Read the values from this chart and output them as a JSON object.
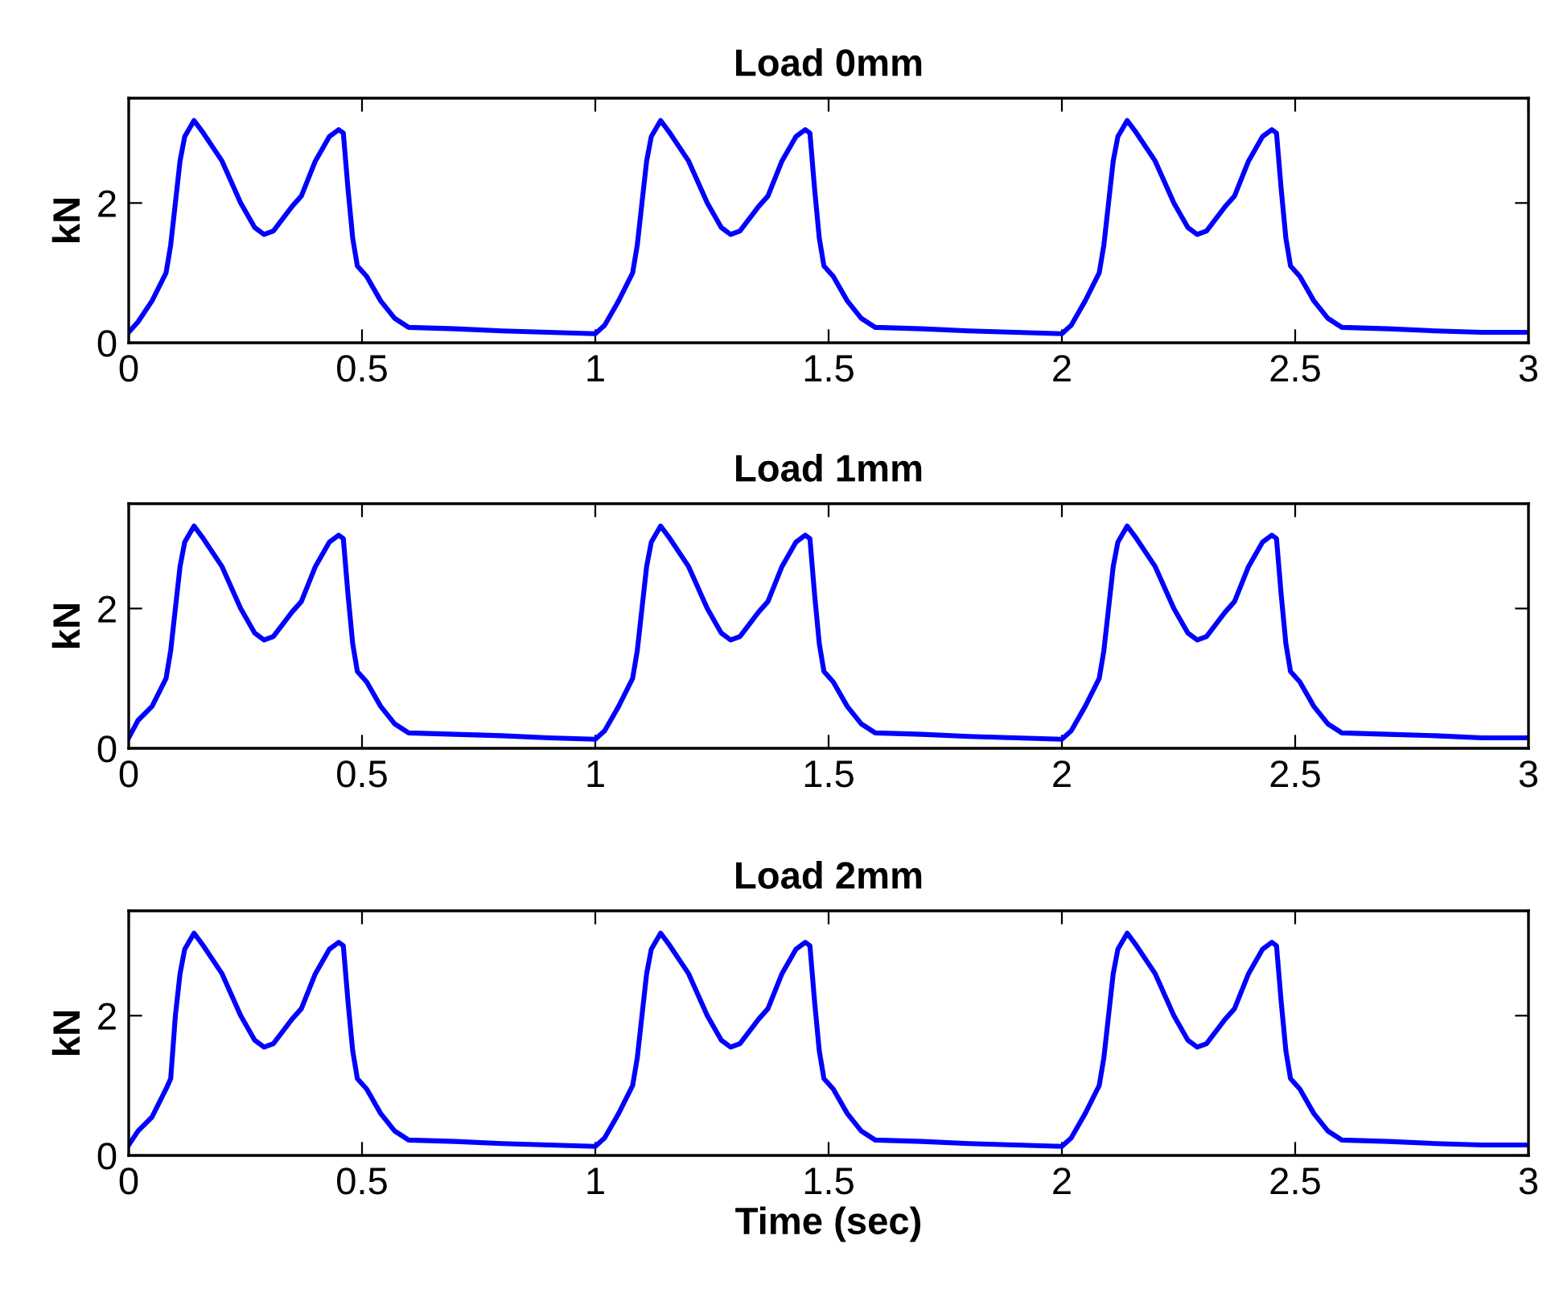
{
  "chart_data": [
    {
      "type": "line",
      "title": "Load 0mm",
      "ylabel": "kN",
      "xlim": [
        0,
        3
      ],
      "xticks": [
        0,
        0.5,
        1,
        1.5,
        2,
        2.5,
        3
      ],
      "ylim": [
        0,
        3.5
      ],
      "yticks": [
        0,
        2
      ],
      "grid": false,
      "marker": "none",
      "line_style": "solid",
      "series": [
        {
          "color": "#0000ff",
          "x": [
            0,
            0.02,
            0.05,
            0.08,
            0.09,
            0.1,
            0.11,
            0.12,
            0.14,
            0.16,
            0.2,
            0.24,
            0.27,
            0.29,
            0.31,
            0.35,
            0.37,
            0.4,
            0.43,
            0.45,
            0.46,
            0.47,
            0.48,
            0.49,
            0.51,
            0.54,
            0.57,
            0.6,
            0.7,
            0.8,
            0.9,
            1.0,
            1.02,
            1.05,
            1.08,
            1.09,
            1.1,
            1.11,
            1.12,
            1.14,
            1.16,
            1.2,
            1.24,
            1.27,
            1.29,
            1.31,
            1.35,
            1.37,
            1.4,
            1.43,
            1.45,
            1.46,
            1.47,
            1.48,
            1.49,
            1.51,
            1.54,
            1.57,
            1.6,
            1.7,
            1.8,
            1.9,
            2.0,
            2.02,
            2.05,
            2.08,
            2.09,
            2.1,
            2.11,
            2.12,
            2.14,
            2.16,
            2.2,
            2.24,
            2.27,
            2.29,
            2.31,
            2.35,
            2.37,
            2.4,
            2.43,
            2.45,
            2.46,
            2.47,
            2.48,
            2.49,
            2.51,
            2.54,
            2.57,
            2.6,
            2.7,
            2.8,
            2.9,
            3.0
          ],
          "values": [
            0.15,
            0.3,
            0.6,
            1.0,
            1.4,
            2.0,
            2.6,
            2.95,
            3.18,
            3.0,
            2.6,
            2.0,
            1.65,
            1.55,
            1.6,
            1.95,
            2.1,
            2.6,
            2.95,
            3.05,
            3.0,
            2.2,
            1.5,
            1.1,
            0.95,
            0.6,
            0.35,
            0.22,
            0.2,
            0.17,
            0.15,
            0.13,
            0.25,
            0.6,
            1.0,
            1.4,
            2.0,
            2.6,
            2.95,
            3.18,
            3.0,
            2.6,
            2.0,
            1.65,
            1.55,
            1.6,
            1.95,
            2.1,
            2.6,
            2.95,
            3.05,
            3.0,
            2.2,
            1.5,
            1.1,
            0.95,
            0.6,
            0.35,
            0.22,
            0.2,
            0.17,
            0.15,
            0.13,
            0.25,
            0.6,
            1.0,
            1.4,
            2.0,
            2.6,
            2.95,
            3.18,
            3.0,
            2.6,
            2.0,
            1.65,
            1.55,
            1.6,
            1.95,
            2.1,
            2.6,
            2.95,
            3.05,
            3.0,
            2.2,
            1.5,
            1.1,
            0.95,
            0.6,
            0.35,
            0.22,
            0.2,
            0.17,
            0.15,
            0.15
          ]
        }
      ]
    },
    {
      "type": "line",
      "title": "Load 1mm",
      "ylabel": "kN",
      "xlim": [
        0,
        3
      ],
      "xticks": [
        0,
        0.5,
        1,
        1.5,
        2,
        2.5,
        3
      ],
      "ylim": [
        0,
        3.5
      ],
      "yticks": [
        0,
        2
      ],
      "grid": false,
      "marker": "none",
      "line_style": "solid",
      "series": [
        {
          "color": "#0000ff",
          "x": [
            0,
            0.02,
            0.05,
            0.08,
            0.09,
            0.1,
            0.11,
            0.12,
            0.14,
            0.16,
            0.2,
            0.24,
            0.27,
            0.29,
            0.31,
            0.35,
            0.37,
            0.4,
            0.43,
            0.45,
            0.46,
            0.47,
            0.48,
            0.49,
            0.51,
            0.54,
            0.57,
            0.6,
            0.7,
            0.8,
            0.9,
            1.0,
            1.02,
            1.05,
            1.08,
            1.09,
            1.1,
            1.11,
            1.12,
            1.14,
            1.16,
            1.2,
            1.24,
            1.27,
            1.29,
            1.31,
            1.35,
            1.37,
            1.4,
            1.43,
            1.45,
            1.46,
            1.47,
            1.48,
            1.49,
            1.51,
            1.54,
            1.57,
            1.6,
            1.7,
            1.8,
            1.9,
            2.0,
            2.02,
            2.05,
            2.08,
            2.09,
            2.1,
            2.11,
            2.12,
            2.14,
            2.16,
            2.2,
            2.24,
            2.27,
            2.29,
            2.31,
            2.35,
            2.37,
            2.4,
            2.43,
            2.45,
            2.46,
            2.47,
            2.48,
            2.49,
            2.51,
            2.54,
            2.57,
            2.6,
            2.7,
            2.8,
            2.9,
            3.0
          ],
          "values": [
            0.15,
            0.4,
            0.6,
            1.0,
            1.4,
            2.0,
            2.6,
            2.95,
            3.18,
            3.0,
            2.6,
            2.0,
            1.65,
            1.55,
            1.6,
            1.95,
            2.1,
            2.6,
            2.95,
            3.05,
            3.0,
            2.2,
            1.5,
            1.1,
            0.95,
            0.6,
            0.35,
            0.22,
            0.2,
            0.18,
            0.15,
            0.13,
            0.25,
            0.6,
            1.0,
            1.4,
            2.0,
            2.6,
            2.95,
            3.18,
            3.0,
            2.6,
            2.0,
            1.65,
            1.55,
            1.6,
            1.95,
            2.1,
            2.6,
            2.95,
            3.05,
            3.0,
            2.2,
            1.5,
            1.1,
            0.95,
            0.6,
            0.35,
            0.22,
            0.2,
            0.17,
            0.15,
            0.13,
            0.25,
            0.6,
            1.0,
            1.4,
            2.0,
            2.6,
            2.95,
            3.18,
            3.0,
            2.6,
            2.0,
            1.65,
            1.55,
            1.6,
            1.95,
            2.1,
            2.6,
            2.95,
            3.05,
            3.0,
            2.2,
            1.5,
            1.1,
            0.95,
            0.6,
            0.35,
            0.22,
            0.2,
            0.18,
            0.15,
            0.15
          ]
        }
      ]
    },
    {
      "type": "line",
      "title": "Load 2mm",
      "ylabel": "kN",
      "xlabel": "Time (sec)",
      "xlim": [
        0,
        3
      ],
      "xticks": [
        0,
        0.5,
        1,
        1.5,
        2,
        2.5,
        3
      ],
      "ylim": [
        0,
        3.5
      ],
      "yticks": [
        0,
        2
      ],
      "grid": false,
      "marker": "none",
      "line_style": "solid",
      "series": [
        {
          "color": "#0000ff",
          "x": [
            0,
            0.02,
            0.05,
            0.08,
            0.09,
            0.1,
            0.11,
            0.12,
            0.14,
            0.16,
            0.2,
            0.24,
            0.27,
            0.29,
            0.31,
            0.35,
            0.37,
            0.4,
            0.43,
            0.45,
            0.46,
            0.47,
            0.48,
            0.49,
            0.51,
            0.54,
            0.57,
            0.6,
            0.7,
            0.8,
            0.9,
            1.0,
            1.02,
            1.05,
            1.08,
            1.09,
            1.1,
            1.11,
            1.12,
            1.14,
            1.16,
            1.2,
            1.24,
            1.27,
            1.29,
            1.31,
            1.35,
            1.37,
            1.4,
            1.43,
            1.45,
            1.46,
            1.47,
            1.48,
            1.49,
            1.51,
            1.54,
            1.57,
            1.6,
            1.7,
            1.8,
            1.9,
            2.0,
            2.02,
            2.05,
            2.08,
            2.09,
            2.1,
            2.11,
            2.12,
            2.14,
            2.16,
            2.2,
            2.24,
            2.27,
            2.29,
            2.31,
            2.35,
            2.37,
            2.4,
            2.43,
            2.45,
            2.46,
            2.47,
            2.48,
            2.49,
            2.51,
            2.54,
            2.57,
            2.6,
            2.7,
            2.8,
            2.9,
            3.0
          ],
          "values": [
            0.15,
            0.35,
            0.55,
            0.95,
            1.1,
            2.0,
            2.6,
            2.95,
            3.18,
            3.0,
            2.6,
            2.0,
            1.65,
            1.55,
            1.6,
            1.95,
            2.1,
            2.6,
            2.95,
            3.05,
            3.0,
            2.2,
            1.5,
            1.1,
            0.95,
            0.6,
            0.35,
            0.22,
            0.2,
            0.17,
            0.15,
            0.13,
            0.25,
            0.6,
            1.0,
            1.4,
            2.0,
            2.6,
            2.95,
            3.18,
            3.0,
            2.6,
            2.0,
            1.65,
            1.55,
            1.6,
            1.95,
            2.1,
            2.6,
            2.95,
            3.05,
            3.0,
            2.2,
            1.5,
            1.1,
            0.95,
            0.6,
            0.35,
            0.22,
            0.2,
            0.17,
            0.15,
            0.13,
            0.25,
            0.6,
            1.0,
            1.4,
            2.0,
            2.6,
            2.95,
            3.18,
            3.0,
            2.6,
            2.0,
            1.65,
            1.55,
            1.6,
            1.95,
            2.1,
            2.6,
            2.95,
            3.05,
            3.0,
            2.2,
            1.5,
            1.1,
            0.95,
            0.6,
            0.35,
            0.22,
            0.2,
            0.17,
            0.15,
            0.15
          ]
        }
      ]
    }
  ]
}
